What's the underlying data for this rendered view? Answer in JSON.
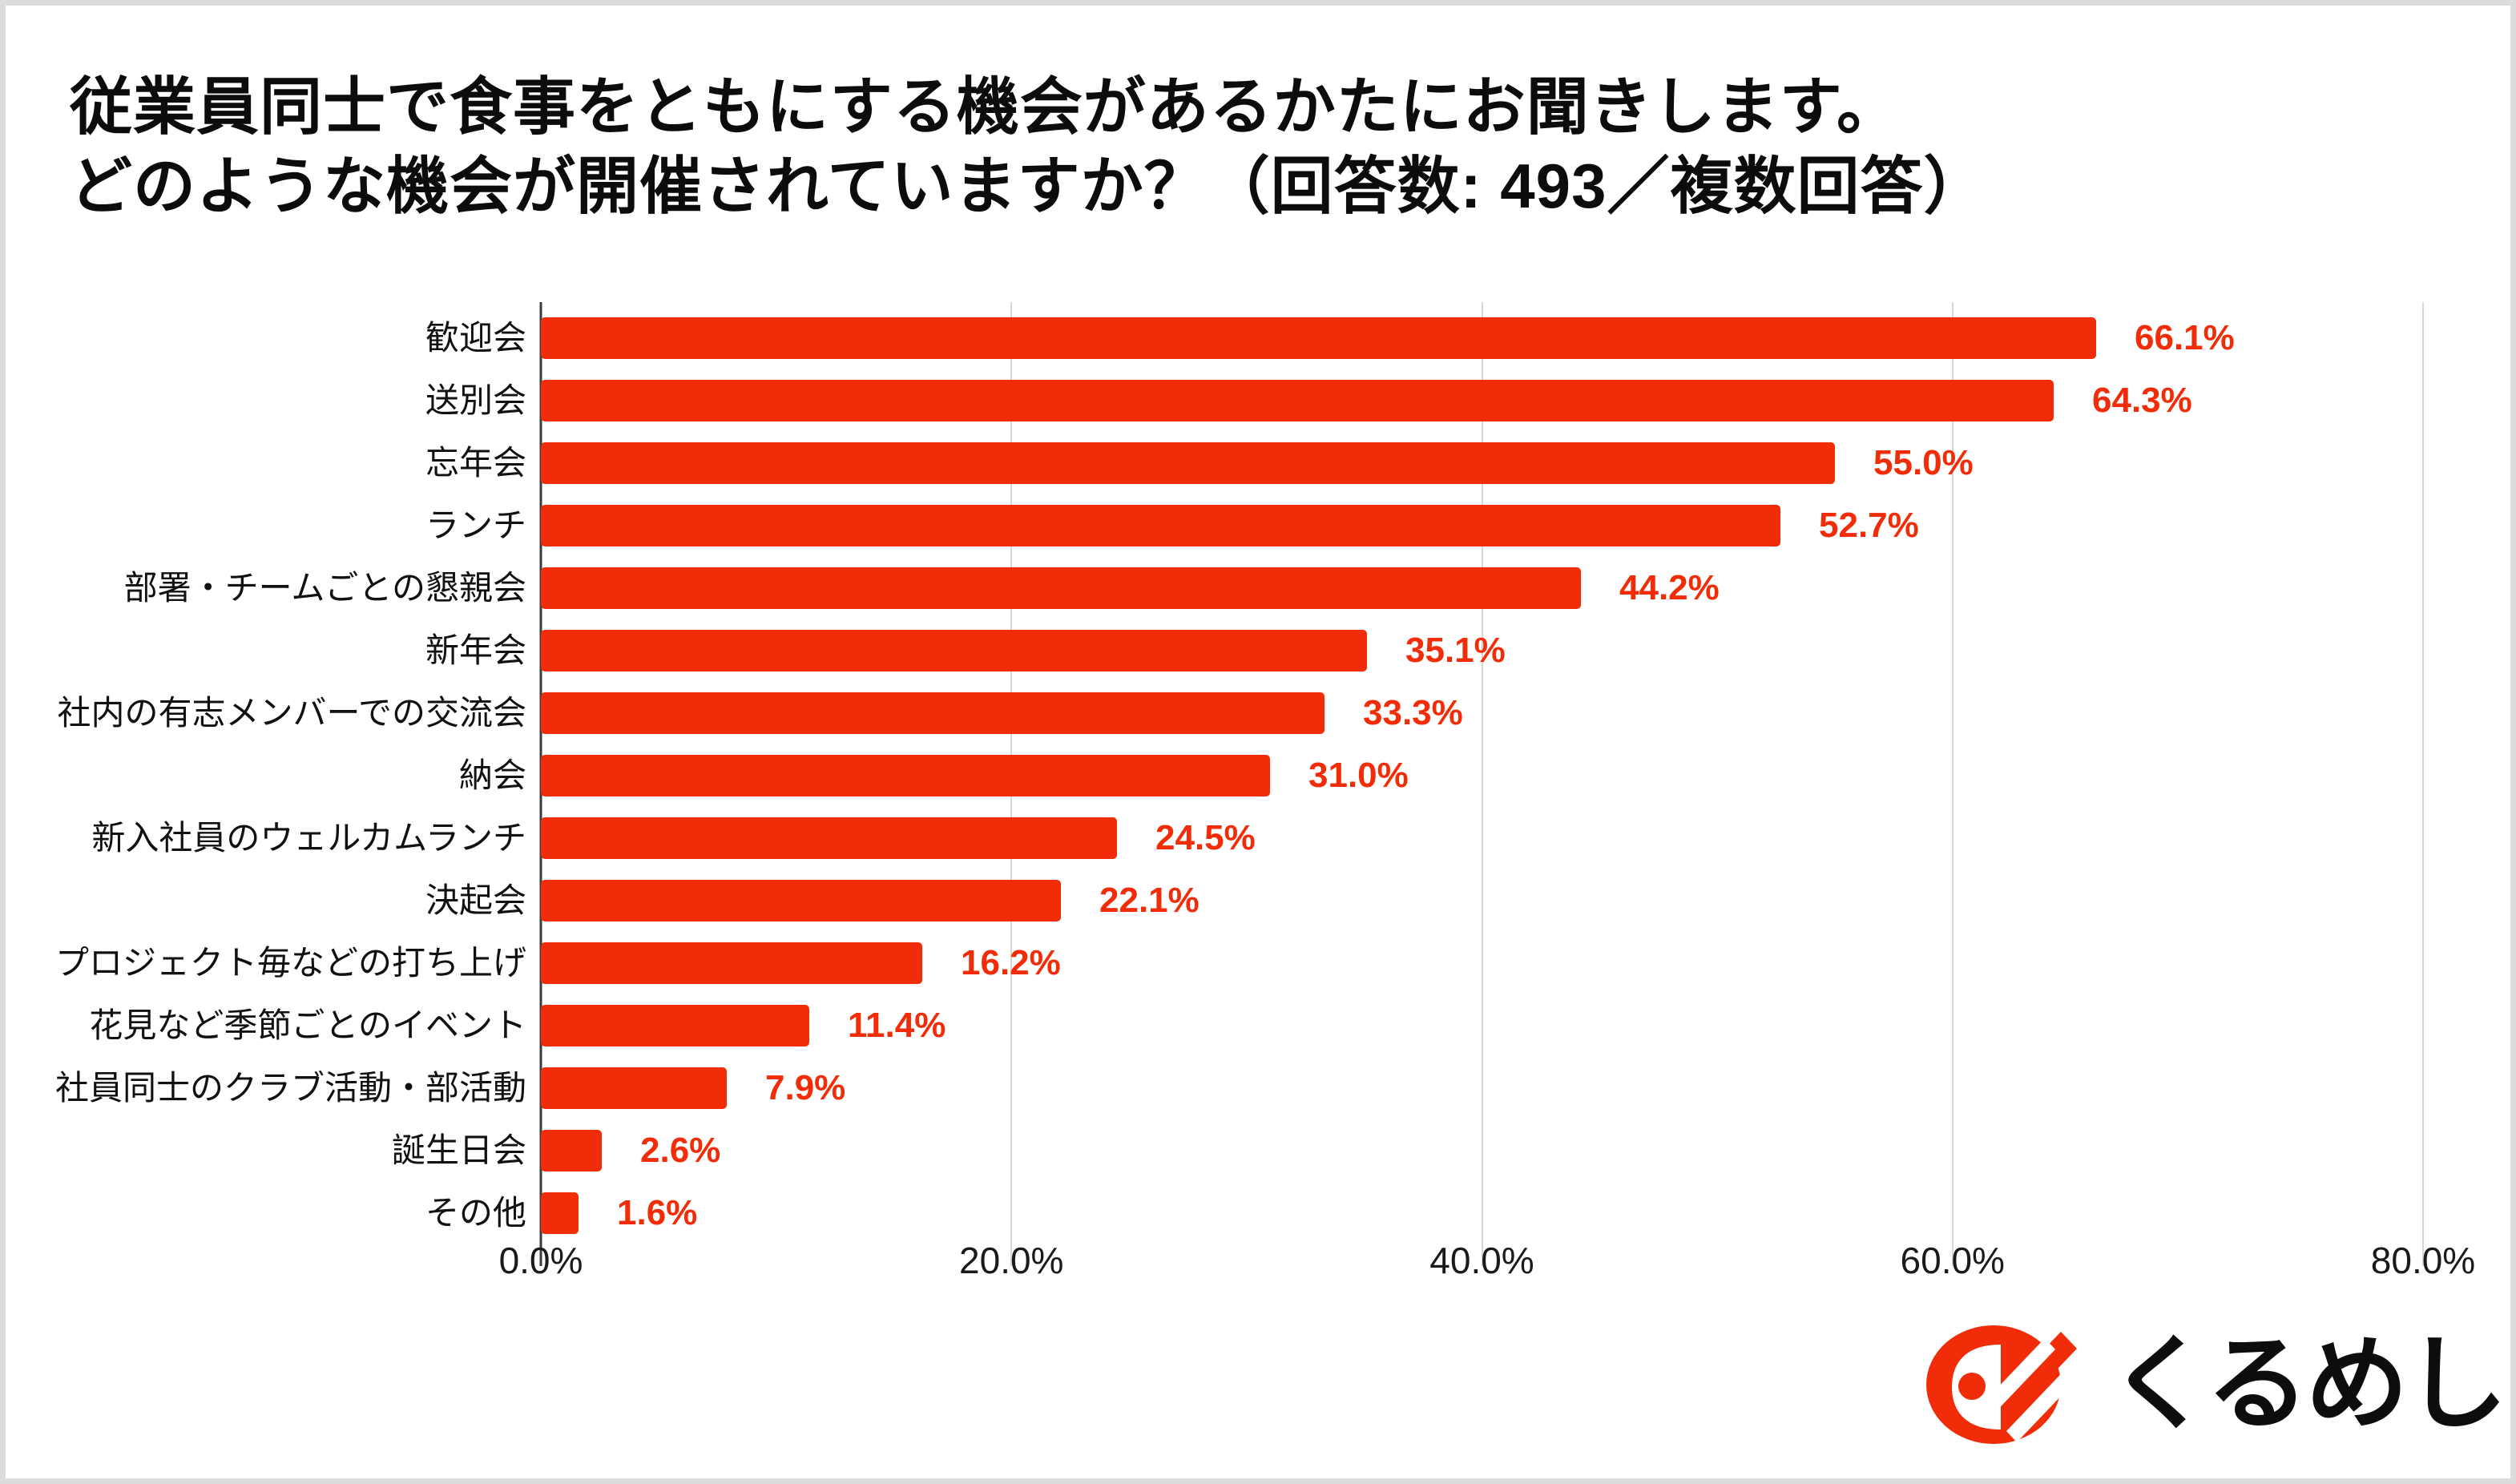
{
  "title": {
    "line1": "従業員同士で食事をともにする機会があるかたにお聞きします。",
    "line2": "どのような機会が開催されていますか？（回答数: 493／複数回答）"
  },
  "chart_data": {
    "type": "bar",
    "orientation": "horizontal",
    "title": "従業員同士で食事をともにする機会があるかたにお聞きします。どのような機会が開催されていますか？（回答数: 493／複数回答）",
    "categories": [
      "歓迎会",
      "送別会",
      "忘年会",
      "ランチ",
      "部署・チームごとの懇親会",
      "新年会",
      "社内の有志メンバーでの交流会",
      "納会",
      "新入社員のウェルカムランチ",
      "決起会",
      "プロジェクト毎などの打ち上げ",
      "花見など季節ごとのイベント",
      "社員同士のクラブ活動・部活動",
      "誕生日会",
      "その他"
    ],
    "values": [
      66.1,
      64.3,
      55.0,
      52.7,
      44.2,
      35.1,
      33.3,
      31.0,
      24.5,
      22.1,
      16.2,
      11.4,
      7.9,
      2.6,
      1.6
    ],
    "value_labels": [
      "66.1%",
      "64.3%",
      "55.0%",
      "52.7%",
      "44.2%",
      "35.1%",
      "33.3%",
      "31.0%",
      "24.5%",
      "22.1%",
      "16.2%",
      "11.4%",
      "7.9%",
      "2.6%",
      "1.6%"
    ],
    "x_ticks": [
      "0.0%",
      "20.0%",
      "40.0%",
      "60.0%",
      "80.0%"
    ],
    "xlim": [
      0,
      80
    ],
    "xlabel": "",
    "ylabel": "",
    "grid": true,
    "legend": false,
    "bar_color": "#f02d08",
    "value_label_color": "#f02d08",
    "gridline_color": "#d6d6d6",
    "axis_line_color": "#3b3b3b"
  },
  "logo": {
    "text": "くるめし",
    "icon": "kurumeshi-bento-icon",
    "color": "#f02d08"
  }
}
